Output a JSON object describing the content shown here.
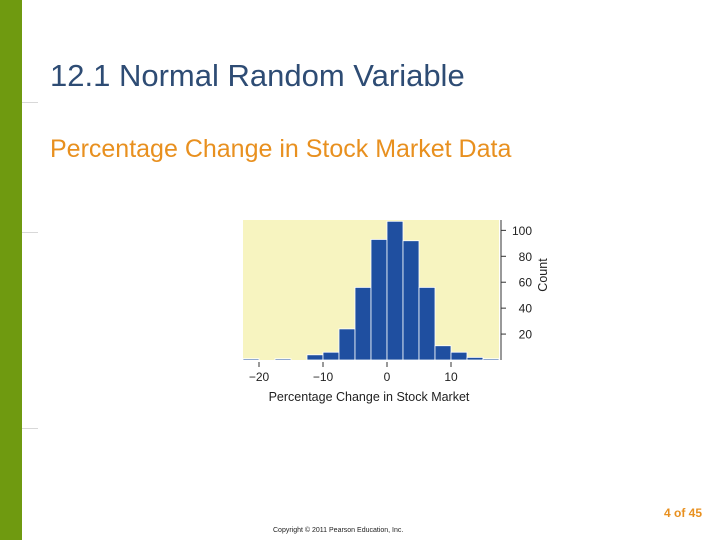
{
  "slide": {
    "title": "12.1 Normal Random Variable",
    "subtitle": "Percentage Change in Stock Market Data",
    "page": "4 of 45",
    "copyright": "Copyright © 2011 Pearson Education, Inc.",
    "accent_color": "#6f9a10",
    "title_color": "#2e4c74",
    "subtitle_color": "#e8901f"
  },
  "chart_data": {
    "type": "bar",
    "title": "",
    "xlabel": "Percentage Change in Stock Market",
    "ylabel": "Count",
    "bin_width": 2.5,
    "xlim": [
      -22.5,
      17.5
    ],
    "ylim": [
      0,
      108
    ],
    "x_ticks": [
      -20,
      -10,
      0,
      10
    ],
    "x_tick_labels": [
      "−20",
      "−10",
      "0",
      "10"
    ],
    "y_ticks": [
      100,
      80,
      60,
      40,
      20
    ],
    "y_axis_side": "right",
    "grid": false,
    "background_color": "#f7f4c0",
    "bar_color": "#1f4fa0",
    "bins": [
      {
        "start": -22.5,
        "count": 1
      },
      {
        "start": -17.5,
        "count": 1
      },
      {
        "start": -12.5,
        "count": 4
      },
      {
        "start": -10.0,
        "count": 6
      },
      {
        "start": -7.5,
        "count": 24
      },
      {
        "start": -5.0,
        "count": 56
      },
      {
        "start": -2.5,
        "count": 93
      },
      {
        "start": 0.0,
        "count": 107
      },
      {
        "start": 2.5,
        "count": 92
      },
      {
        "start": 5.0,
        "count": 56
      },
      {
        "start": 7.5,
        "count": 11
      },
      {
        "start": 10.0,
        "count": 6
      },
      {
        "start": 12.5,
        "count": 2
      },
      {
        "start": 15.0,
        "count": 1
      }
    ]
  }
}
